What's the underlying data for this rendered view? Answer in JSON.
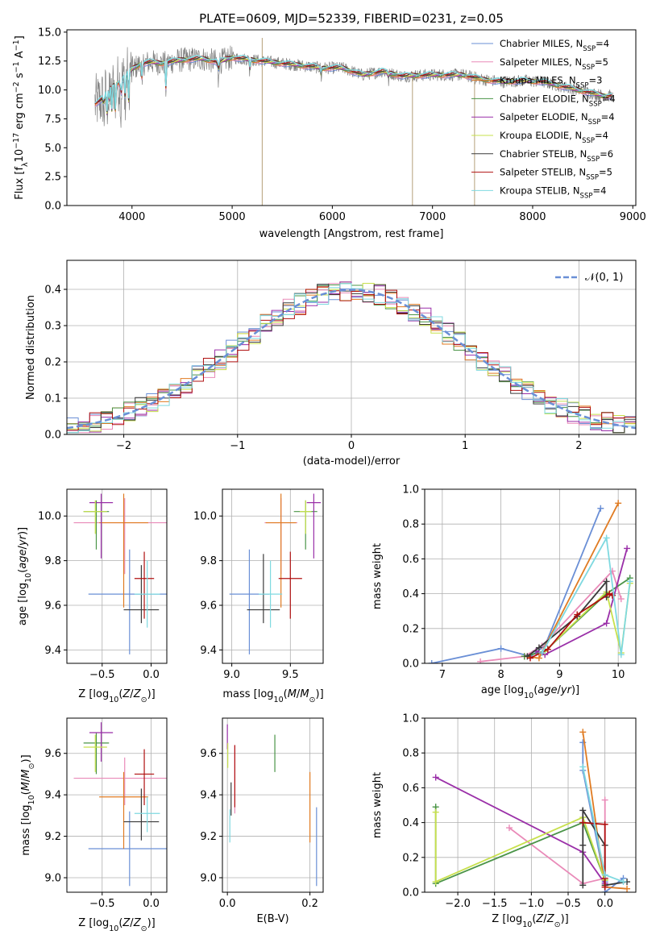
{
  "title": "PLATE=0609, MJD=52339, FIBERID=0231, z=0.05",
  "colors": {
    "Chabrier MILES": "#6a8fd6",
    "Salpeter MILES": "#e98ab8",
    "Kroupa MILES": "#e07b22",
    "Chabrier ELODIE": "#4a9447",
    "Salpeter ELODIE": "#9a2fa8",
    "Kroupa ELODIE": "#c7e04c",
    "Chabrier STELIB": "#3a3a3a",
    "Salpeter STELIB": "#b01010",
    "Kroupa STELIB": "#7fd9e0",
    "data": "#808080",
    "normal": "#6a8fd6"
  },
  "chart_data": [
    {
      "id": "spectrum",
      "type": "line",
      "title": "PLATE=0609, MJD=52339, FIBERID=0231, z=0.05",
      "xlabel": "wavelength [Angstrom, rest frame]",
      "ylabel": "Flux [fλ10⁻¹⁷ erg cm⁻² s⁻¹ A⁻¹]",
      "xlim": [
        3350,
        9030
      ],
      "ylim": [
        0,
        15.2
      ],
      "xticks": [
        4000,
        5000,
        6000,
        7000,
        8000,
        9000
      ],
      "yticks": [
        0.0,
        2.5,
        5.0,
        7.5,
        10.0,
        12.5,
        15.0
      ],
      "legend_position": "top-right",
      "legend": [
        "Chabrier MILES, N_SSP=4",
        "Salpeter MILES, N_SSP=5",
        "Kroupa MILES, N_SSP=3",
        "Chabrier ELODIE, N_SSP=4",
        "Salpeter ELODIE, N_SSP=4",
        "Kroupa ELODIE, N_SSP=4",
        "Chabrier STELIB, N_SSP=6",
        "Salpeter STELIB, N_SSP=5",
        "Kroupa STELIB, N_SSP=4"
      ],
      "legend_display": [
        "Chabrier MILES, N",
        "Salpeter MILES, N",
        "Kroupa MILES, N",
        "Chabrier ELODIE, N",
        "Salpeter ELODIE, N",
        "Kroupa ELODIE, N",
        "Chabrier STELIB, N",
        "Salpeter STELIB, N",
        "Kroupa STELIB, N"
      ],
      "legend_counts": [
        "=4",
        "=5",
        "=3",
        "=4",
        "=4",
        "=4",
        "=6",
        "=5",
        "=4"
      ],
      "model_continuum": {
        "x": [
          3630,
          3700,
          3800,
          3900,
          4000,
          4100,
          4200,
          4300,
          4500,
          4700,
          4860,
          5000,
          5300,
          5600,
          5900,
          6100,
          6300,
          6500,
          6700,
          7000,
          7300,
          7500,
          7700,
          7900,
          8100,
          8300,
          8500,
          8700
        ],
        "y": [
          8.8,
          9.2,
          10.3,
          10.8,
          11.8,
          12.3,
          12.4,
          12.3,
          12.6,
          12.7,
          12.4,
          12.8,
          12.5,
          12.2,
          11.9,
          11.9,
          11.3,
          11.6,
          11.2,
          11.3,
          11.3,
          10.9,
          10.7,
          10.8,
          10.7,
          10.3,
          9.9,
          9.5
        ]
      }
    },
    {
      "id": "residuals",
      "type": "histogram",
      "xlabel": "(data-model)/error",
      "ylabel": "Normed distribution",
      "xlim": [
        -2.5,
        2.5
      ],
      "ylim": [
        0,
        0.48
      ],
      "xticks": [
        -2,
        -1,
        0,
        1,
        2
      ],
      "yticks": [
        0.0,
        0.1,
        0.2,
        0.3,
        0.4
      ],
      "legend": [
        "𝒩(0, 1)"
      ],
      "legend_position": "top-right",
      "grid": true
    },
    {
      "id": "age-vs-Z",
      "type": "scatter",
      "xlabel": "Z [log10(Z/Z⊙)]",
      "ylabel": "age [log10(age/yr)]",
      "xlim": [
        -0.86,
        0.16
      ],
      "ylim": [
        9.34,
        10.12
      ],
      "xticks": [
        -0.5,
        0.0
      ],
      "yticks": [
        9.4,
        9.6,
        9.8,
        10.0
      ],
      "grid": true,
      "points": [
        {
          "model": "Chabrier MILES",
          "x": -0.22,
          "y": 9.65,
          "xerr": 0.42,
          "yerr": [
            0.27,
            0.2
          ]
        },
        {
          "model": "Salpeter MILES",
          "x": -0.27,
          "y": 9.97,
          "xerr": 0.52,
          "yerr": [
            0.23,
            0.11
          ]
        },
        {
          "model": "Kroupa MILES",
          "x": -0.28,
          "y": 9.97,
          "xerr": 0.25,
          "yerr": [
            0.38,
            0.13
          ]
        },
        {
          "model": "Chabrier ELODIE",
          "x": -0.56,
          "y": 10.02,
          "xerr": 0.13,
          "yerr": [
            0.17,
            0.05
          ]
        },
        {
          "model": "Salpeter ELODIE",
          "x": -0.51,
          "y": 10.06,
          "xerr": 0.12,
          "yerr": [
            0.25,
            0.04
          ]
        },
        {
          "model": "Kroupa ELODIE",
          "x": -0.57,
          "y": 10.02,
          "xerr": 0.12,
          "yerr": [
            0.1,
            0.05
          ]
        },
        {
          "model": "Chabrier STELIB",
          "x": -0.1,
          "y": 9.58,
          "xerr": 0.18,
          "yerr": [
            0.06,
            0.2
          ]
        },
        {
          "model": "Salpeter STELIB",
          "x": -0.07,
          "y": 9.72,
          "xerr": 0.1,
          "yerr": [
            0.18,
            0.12
          ]
        },
        {
          "model": "Kroupa STELIB",
          "x": -0.04,
          "y": 9.65,
          "xerr": 0.13,
          "yerr": [
            0.15,
            0.15
          ]
        }
      ]
    },
    {
      "id": "age-vs-mass",
      "type": "scatter",
      "xlabel": "mass [log10(M/M⊙)]",
      "ylabel": "",
      "xlim": [
        8.92,
        9.78
      ],
      "ylim": [
        9.34,
        10.12
      ],
      "xticks": [
        9.0,
        9.5
      ],
      "yticks": [
        9.4,
        9.6,
        9.8,
        10.0
      ],
      "grid": true,
      "points": [
        {
          "model": "Chabrier MILES",
          "x": 9.15,
          "y": 9.65,
          "xerr": 0.17,
          "yerr": [
            0.27,
            0.2
          ]
        },
        {
          "model": "Salpeter MILES",
          "x": 9.42,
          "y": 9.97,
          "xerr": 0.14,
          "yerr": [
            0.23,
            0.11
          ]
        },
        {
          "model": "Kroupa MILES",
          "x": 9.42,
          "y": 9.97,
          "xerr": 0.13,
          "yerr": [
            0.38,
            0.13
          ]
        },
        {
          "model": "Chabrier ELODIE",
          "x": 9.63,
          "y": 10.02,
          "xerr": 0.1,
          "yerr": [
            0.17,
            0.05
          ]
        },
        {
          "model": "Salpeter ELODIE",
          "x": 9.7,
          "y": 10.06,
          "xerr": 0.06,
          "yerr": [
            0.25,
            0.04
          ]
        },
        {
          "model": "Kroupa ELODIE",
          "x": 9.63,
          "y": 10.02,
          "xerr": 0.05,
          "yerr": [
            0.1,
            0.05
          ]
        },
        {
          "model": "Chabrier STELIB",
          "x": 9.27,
          "y": 9.58,
          "xerr": 0.14,
          "yerr": [
            0.06,
            0.25
          ]
        },
        {
          "model": "Salpeter STELIB",
          "x": 9.5,
          "y": 9.72,
          "xerr": 0.1,
          "yerr": [
            0.18,
            0.12
          ]
        },
        {
          "model": "Kroupa STELIB",
          "x": 9.33,
          "y": 9.65,
          "xerr": 0.1,
          "yerr": [
            0.15,
            0.15
          ]
        }
      ]
    },
    {
      "id": "weight-vs-age",
      "type": "line",
      "xlabel": "age  [log10(age/yr)]",
      "ylabel": "mass weight",
      "xlim": [
        6.7,
        10.3
      ],
      "ylim": [
        0,
        1.0
      ],
      "xticks": [
        7,
        8,
        9,
        10
      ],
      "yticks": [
        0.0,
        0.2,
        0.4,
        0.6,
        0.8,
        1.0
      ],
      "grid": true,
      "series": [
        {
          "model": "Chabrier MILES",
          "x": [
            6.82,
            8.0,
            8.5,
            8.75,
            9.7
          ],
          "y": [
            0.0,
            0.085,
            0.04,
            0.1,
            0.89
          ]
        },
        {
          "model": "Salpeter MILES",
          "x": [
            7.65,
            8.4,
            8.7,
            9.9,
            10.05
          ],
          "y": [
            0.01,
            0.04,
            0.1,
            0.53,
            0.37
          ]
        },
        {
          "model": "Kroupa MILES",
          "x": [
            8.4,
            8.65,
            10.0
          ],
          "y": [
            0.04,
            0.03,
            0.92
          ]
        },
        {
          "model": "Chabrier ELODIE",
          "x": [
            8.4,
            8.75,
            9.8,
            10.2
          ],
          "y": [
            0.04,
            0.07,
            0.4,
            0.49
          ]
        },
        {
          "model": "Salpeter ELODIE",
          "x": [
            8.6,
            8.75,
            9.8,
            10.15
          ],
          "y": [
            0.07,
            0.05,
            0.23,
            0.66
          ]
        },
        {
          "model": "Kroupa ELODIE",
          "x": [
            8.75,
            9.8,
            10.05,
            10.2
          ],
          "y": [
            0.07,
            0.41,
            0.06,
            0.46
          ]
        },
        {
          "model": "Chabrier STELIB",
          "x": [
            8.45,
            8.65,
            9.3,
            9.8,
            9.8
          ],
          "y": [
            0.04,
            0.09,
            0.27,
            0.47,
            0.38
          ]
        },
        {
          "model": "Salpeter STELIB",
          "x": [
            8.5,
            8.8,
            9.3,
            9.85,
            9.9
          ],
          "y": [
            0.03,
            0.08,
            0.28,
            0.4,
            0.39
          ]
        },
        {
          "model": "Kroupa STELIB",
          "x": [
            8.7,
            9.8,
            10.05,
            10.2
          ],
          "y": [
            0.06,
            0.72,
            0.05,
            0.47
          ]
        }
      ]
    },
    {
      "id": "mass-vs-Z",
      "type": "scatter",
      "xlabel": "Z [log10(Z/Z⊙)]",
      "ylabel": "mass [log10(M/M⊙)]",
      "xlim": [
        -0.86,
        0.16
      ],
      "ylim": [
        8.93,
        9.77
      ],
      "xticks": [
        -0.5,
        0.0
      ],
      "yticks": [
        9.0,
        9.2,
        9.4,
        9.6
      ],
      "grid": true,
      "points": [
        {
          "model": "Chabrier MILES",
          "x": -0.22,
          "y": 9.14,
          "xerr": 0.42,
          "yerr": [
            0.18,
            0.18
          ]
        },
        {
          "model": "Salpeter MILES",
          "x": -0.27,
          "y": 9.48,
          "xerr": 0.52,
          "yerr": [
            0.13,
            0.1
          ]
        },
        {
          "model": "Kroupa MILES",
          "x": -0.28,
          "y": 9.39,
          "xerr": 0.25,
          "yerr": [
            0.25,
            0.12
          ]
        },
        {
          "model": "Chabrier ELODIE",
          "x": -0.56,
          "y": 9.65,
          "xerr": 0.13,
          "yerr": [
            0.15,
            0.05
          ]
        },
        {
          "model": "Salpeter ELODIE",
          "x": -0.51,
          "y": 9.7,
          "xerr": 0.12,
          "yerr": [
            0.14,
            0.05
          ]
        },
        {
          "model": "Kroupa ELODIE",
          "x": -0.57,
          "y": 9.63,
          "xerr": 0.12,
          "yerr": [
            0.12,
            0.06
          ]
        },
        {
          "model": "Chabrier STELIB",
          "x": -0.1,
          "y": 9.27,
          "xerr": 0.18,
          "yerr": [
            0.09,
            0.16
          ]
        },
        {
          "model": "Salpeter STELIB",
          "x": -0.07,
          "y": 9.5,
          "xerr": 0.1,
          "yerr": [
            0.15,
            0.12
          ]
        },
        {
          "model": "Kroupa STELIB",
          "x": -0.04,
          "y": 9.31,
          "xerr": 0.13,
          "yerr": [
            0.09,
            0.08
          ]
        }
      ]
    },
    {
      "id": "mass-vs-EBV",
      "type": "scatter",
      "xlabel": "E(B-V)",
      "ylabel": "",
      "xlim": [
        -0.012,
        0.232
      ],
      "ylim": [
        8.93,
        9.77
      ],
      "xticks": [
        0.0,
        0.2
      ],
      "yticks": [
        9.0,
        9.2,
        9.4,
        9.6
      ],
      "grid": true,
      "points": [
        {
          "model": "Chabrier MILES",
          "x": 0.216,
          "y": 9.14,
          "yerr": [
            0.18,
            0.2
          ]
        },
        {
          "model": "Salpeter MILES",
          "x": 0.018,
          "y": 9.48,
          "yerr": [
            0.17,
            0.16
          ]
        },
        {
          "model": "Kroupa MILES",
          "x": 0.2,
          "y": 9.35,
          "yerr": [
            0.18,
            0.16
          ]
        },
        {
          "model": "Chabrier ELODIE",
          "x": 0.115,
          "y": 9.6,
          "yerr": [
            0.09,
            0.09
          ]
        },
        {
          "model": "Salpeter ELODIE",
          "x": 0.0,
          "y": 9.68,
          "yerr": [
            0.06,
            0.06
          ]
        },
        {
          "model": "Kroupa ELODIE",
          "x": 0.001,
          "y": 9.6,
          "yerr": [
            0.07,
            0.05
          ]
        },
        {
          "model": "Chabrier STELIB",
          "x": 0.009,
          "y": 9.38,
          "yerr": [
            0.08,
            0.08
          ]
        },
        {
          "model": "Salpeter STELIB",
          "x": 0.018,
          "y": 9.5,
          "yerr": [
            0.16,
            0.14
          ]
        },
        {
          "model": "Kroupa STELIB",
          "x": 0.006,
          "y": 9.25,
          "yerr": [
            0.08,
            0.08
          ]
        }
      ]
    },
    {
      "id": "weight-vs-Z",
      "type": "line",
      "xlabel": "Z [log10(Z/Z⊙)]",
      "ylabel": "mass weight",
      "xlim": [
        -2.45,
        0.42
      ],
      "ylim": [
        0,
        1.0
      ],
      "xticks": [
        -2.0,
        -1.5,
        -1.0,
        -0.5,
        0.0
      ],
      "yticks": [
        0.0,
        0.2,
        0.4,
        0.6,
        0.8,
        1.0
      ],
      "grid": true,
      "series": [
        {
          "model": "Chabrier MILES",
          "x": [
            -0.3,
            -0.3,
            0.0,
            0.0,
            0.25
          ],
          "y": [
            0.86,
            0.7,
            0.06,
            0.0,
            0.08
          ]
        },
        {
          "model": "Salpeter MILES",
          "x": [
            -1.3,
            -0.3,
            0.0,
            0.0
          ],
          "y": [
            0.37,
            0.05,
            0.08,
            0.53
          ]
        },
        {
          "model": "Kroupa MILES",
          "x": [
            -0.3,
            0.0,
            0.3
          ],
          "y": [
            0.92,
            0.03,
            0.02
          ]
        },
        {
          "model": "Chabrier ELODIE",
          "x": [
            -2.3,
            -2.3,
            -0.3,
            0.0
          ],
          "y": [
            0.49,
            0.05,
            0.4,
            0.07
          ]
        },
        {
          "model": "Salpeter ELODIE",
          "x": [
            -2.3,
            -0.3,
            0.0
          ],
          "y": [
            0.66,
            0.23,
            0.05
          ]
        },
        {
          "model": "Kroupa ELODIE",
          "x": [
            -2.3,
            -2.3,
            -0.3,
            0.0
          ],
          "y": [
            0.46,
            0.06,
            0.43,
            0.07
          ]
        },
        {
          "model": "Chabrier STELIB",
          "x": [
            -0.3,
            -0.3,
            -0.3,
            0.0,
            0.0,
            0.3
          ],
          "y": [
            0.04,
            0.27,
            0.47,
            0.27,
            0.04,
            0.06
          ]
        },
        {
          "model": "Salpeter STELIB",
          "x": [
            -0.3,
            0.0,
            0.0,
            0.0
          ],
          "y": [
            0.4,
            0.39,
            0.08,
            0.03
          ]
        },
        {
          "model": "Kroupa STELIB",
          "x": [
            -0.3,
            0.0,
            0.25
          ],
          "y": [
            0.72,
            0.1,
            0.06
          ]
        }
      ]
    }
  ]
}
